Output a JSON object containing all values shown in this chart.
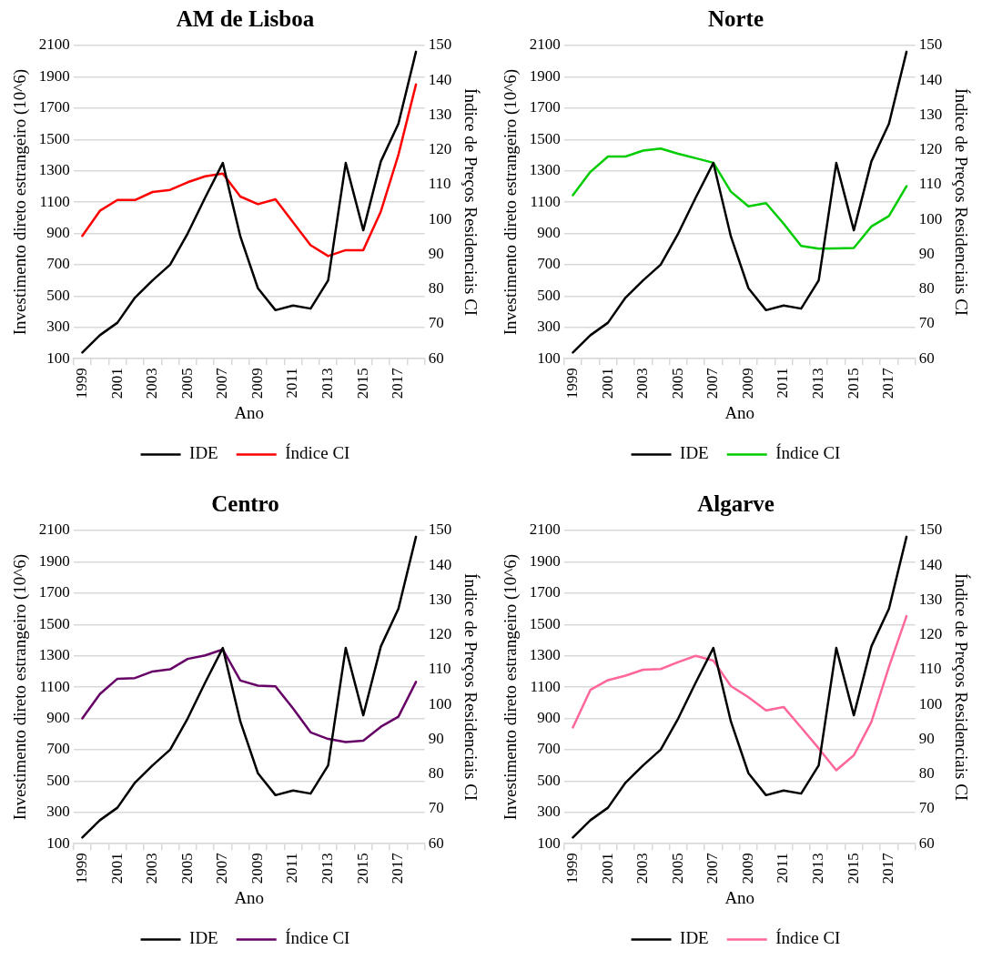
{
  "chart_data": [
    {
      "type": "line",
      "title": "AM de Lisboa",
      "xlabel": "Ano",
      "ylabel": "Investimento direto estrangeiro (10^6)",
      "y2label": "Índice de Preços Residenciais CI",
      "categories": [
        "1999",
        null,
        "2001",
        null,
        "2003",
        null,
        "2005",
        null,
        "2007",
        null,
        "2009",
        null,
        "2011",
        null,
        "2013",
        null,
        "2015",
        null,
        "2017",
        null
      ],
      "series": [
        {
          "name": "IDE",
          "color": "#000000",
          "values": [
            140,
            250,
            330,
            490,
            600,
            700,
            900,
            1130,
            1350,
            880,
            550,
            410,
            440,
            420,
            600,
            1350,
            920,
            1360,
            1600,
            2060
          ]
        },
        {
          "name": "Índice CI",
          "color": "#ff0000",
          "axis": "y2",
          "values": [
            95.3,
            102.5,
            105.6,
            105.6,
            107.9,
            108.5,
            110.7,
            112.4,
            113.2,
            106.6,
            104.4,
            105.8,
            99.2,
            92.6,
            89.5,
            91.2,
            91.2,
            102.3,
            118.6,
            138.8
          ]
        }
      ],
      "ylim": [
        100,
        2100
      ],
      "yticks": [
        100,
        300,
        500,
        700,
        900,
        1100,
        1300,
        1500,
        1700,
        1900,
        2100
      ],
      "y2lim": [
        60,
        150
      ],
      "y2ticks": [
        60,
        70,
        80,
        90,
        100,
        110,
        120,
        130,
        140,
        150
      ],
      "grid": "y",
      "legend": "bottom",
      "marker": "none"
    },
    {
      "type": "line",
      "title": "Norte",
      "xlabel": "Ano",
      "ylabel": "Investimento direto estrangeiro (10^6)",
      "y2label": "Índice de Preços Residenciais CI",
      "categories": [
        "1999",
        null,
        "2001",
        null,
        "2003",
        null,
        "2005",
        null,
        "2007",
        null,
        "2009",
        null,
        "2011",
        null,
        "2013",
        null,
        "2015",
        null,
        "2017",
        null
      ],
      "series": [
        {
          "name": "IDE",
          "color": "#000000",
          "values": [
            140,
            250,
            330,
            490,
            600,
            700,
            900,
            1130,
            1350,
            880,
            550,
            410,
            440,
            420,
            600,
            1350,
            920,
            1360,
            1600,
            2060
          ]
        },
        {
          "name": "Índice CI",
          "color": "#00cc00",
          "axis": "y2",
          "values": [
            107.0,
            113.7,
            118.1,
            118.1,
            119.8,
            120.4,
            118.9,
            117.6,
            116.3,
            108.0,
            103.8,
            104.7,
            98.8,
            92.4,
            91.6,
            91.7,
            91.8,
            98.0,
            101.0,
            109.6
          ]
        }
      ],
      "ylim": [
        100,
        2100
      ],
      "yticks": [
        100,
        300,
        500,
        700,
        900,
        1100,
        1300,
        1500,
        1700,
        1900,
        2100
      ],
      "y2lim": [
        60,
        150
      ],
      "y2ticks": [
        60,
        70,
        80,
        90,
        100,
        110,
        120,
        130,
        140,
        150
      ],
      "grid": "y",
      "legend": "bottom",
      "marker": "none"
    },
    {
      "type": "line",
      "title": "Centro",
      "xlabel": "Ano",
      "ylabel": "Investimento direto estrangeiro (10^6)",
      "y2label": "Índice de Preços Residenciais CI",
      "categories": [
        "1999",
        null,
        "2001",
        null,
        "2003",
        null,
        "2005",
        null,
        "2007",
        null,
        "2009",
        null,
        "2011",
        null,
        "2013",
        null,
        "2015",
        null,
        "2017",
        null
      ],
      "series": [
        {
          "name": "IDE",
          "color": "#000000",
          "values": [
            140,
            250,
            330,
            490,
            600,
            700,
            900,
            1130,
            1350,
            880,
            550,
            410,
            440,
            420,
            600,
            1350,
            920,
            1360,
            1600,
            2060
          ]
        },
        {
          "name": "Índice CI",
          "color": "#660066",
          "axis": "y2",
          "values": [
            96.0,
            103.0,
            107.4,
            107.6,
            109.5,
            110.1,
            113.1,
            114.1,
            115.8,
            106.9,
            105.4,
            105.2,
            98.9,
            92.0,
            90.1,
            89.2,
            89.6,
            93.6,
            96.5,
            106.5
          ]
        }
      ],
      "ylim": [
        100,
        2100
      ],
      "yticks": [
        100,
        300,
        500,
        700,
        900,
        1100,
        1300,
        1500,
        1700,
        1900,
        2100
      ],
      "y2lim": [
        60,
        150
      ],
      "y2ticks": [
        60,
        70,
        80,
        90,
        100,
        110,
        120,
        130,
        140,
        150
      ],
      "grid": "y",
      "legend": "bottom",
      "marker": "none"
    },
    {
      "type": "line",
      "title": "Algarve",
      "xlabel": "Ano",
      "ylabel": "Investimento direto estrangeiro (10^6)",
      "y2label": "Índice de Preços Residenciais CI",
      "categories": [
        "1999",
        null,
        "2001",
        null,
        "2003",
        null,
        "2005",
        null,
        "2007",
        null,
        "2009",
        null,
        "2011",
        null,
        "2013",
        null,
        "2015",
        null,
        "2017",
        null
      ],
      "series": [
        {
          "name": "IDE",
          "color": "#000000",
          "values": [
            140,
            250,
            330,
            490,
            600,
            700,
            900,
            1130,
            1350,
            880,
            550,
            410,
            440,
            420,
            600,
            1350,
            920,
            1360,
            1600,
            2060
          ]
        },
        {
          "name": "Índice CI",
          "color": "#ff6699",
          "axis": "y2",
          "values": [
            93.4,
            104.2,
            107.0,
            108.3,
            110.0,
            110.2,
            112.2,
            114.0,
            112.6,
            105.3,
            102.1,
            98.3,
            99.3,
            93.4,
            87.4,
            81.1,
            85.4,
            95.0,
            110.8,
            125.4
          ]
        }
      ],
      "ylim": [
        100,
        2100
      ],
      "yticks": [
        100,
        300,
        500,
        700,
        900,
        1100,
        1300,
        1500,
        1700,
        1900,
        2100
      ],
      "y2lim": [
        60,
        150
      ],
      "y2ticks": [
        60,
        70,
        80,
        90,
        100,
        110,
        120,
        130,
        140,
        150
      ],
      "grid": "y",
      "legend": "bottom",
      "marker": "none"
    }
  ]
}
